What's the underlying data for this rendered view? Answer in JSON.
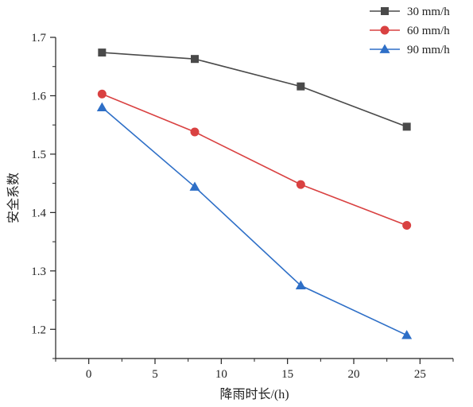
{
  "chart_data": {
    "type": "line",
    "title": "",
    "xlabel": "降雨时长/(h)",
    "ylabel": "安全系数",
    "xlim": [
      -2.5,
      27.5
    ],
    "ylim": [
      1.15,
      1.7
    ],
    "x_ticks": [
      0,
      5,
      10,
      15,
      20,
      25
    ],
    "x_tick_labels": [
      "0",
      "5",
      "10",
      "15",
      "20",
      "25"
    ],
    "y_ticks": [
      1.2,
      1.3,
      1.4,
      1.5,
      1.6,
      1.7
    ],
    "y_tick_labels": [
      "1.2",
      "1.3",
      "1.4",
      "1.5",
      "1.6",
      "1.7"
    ],
    "grid": false,
    "legend_position": "top-right",
    "x": [
      1,
      8,
      16,
      24
    ],
    "series": [
      {
        "name": "30 mm/h",
        "values": [
          1.674,
          1.663,
          1.616,
          1.547
        ],
        "color": "#4a4a4a",
        "marker": "square"
      },
      {
        "name": "60 mm/h",
        "values": [
          1.603,
          1.538,
          1.448,
          1.378
        ],
        "color": "#d94141",
        "marker": "circle"
      },
      {
        "name": "90 mm/h",
        "values": [
          1.58,
          1.444,
          1.275,
          1.19
        ],
        "color": "#2e6fc7",
        "marker": "triangle"
      }
    ]
  }
}
